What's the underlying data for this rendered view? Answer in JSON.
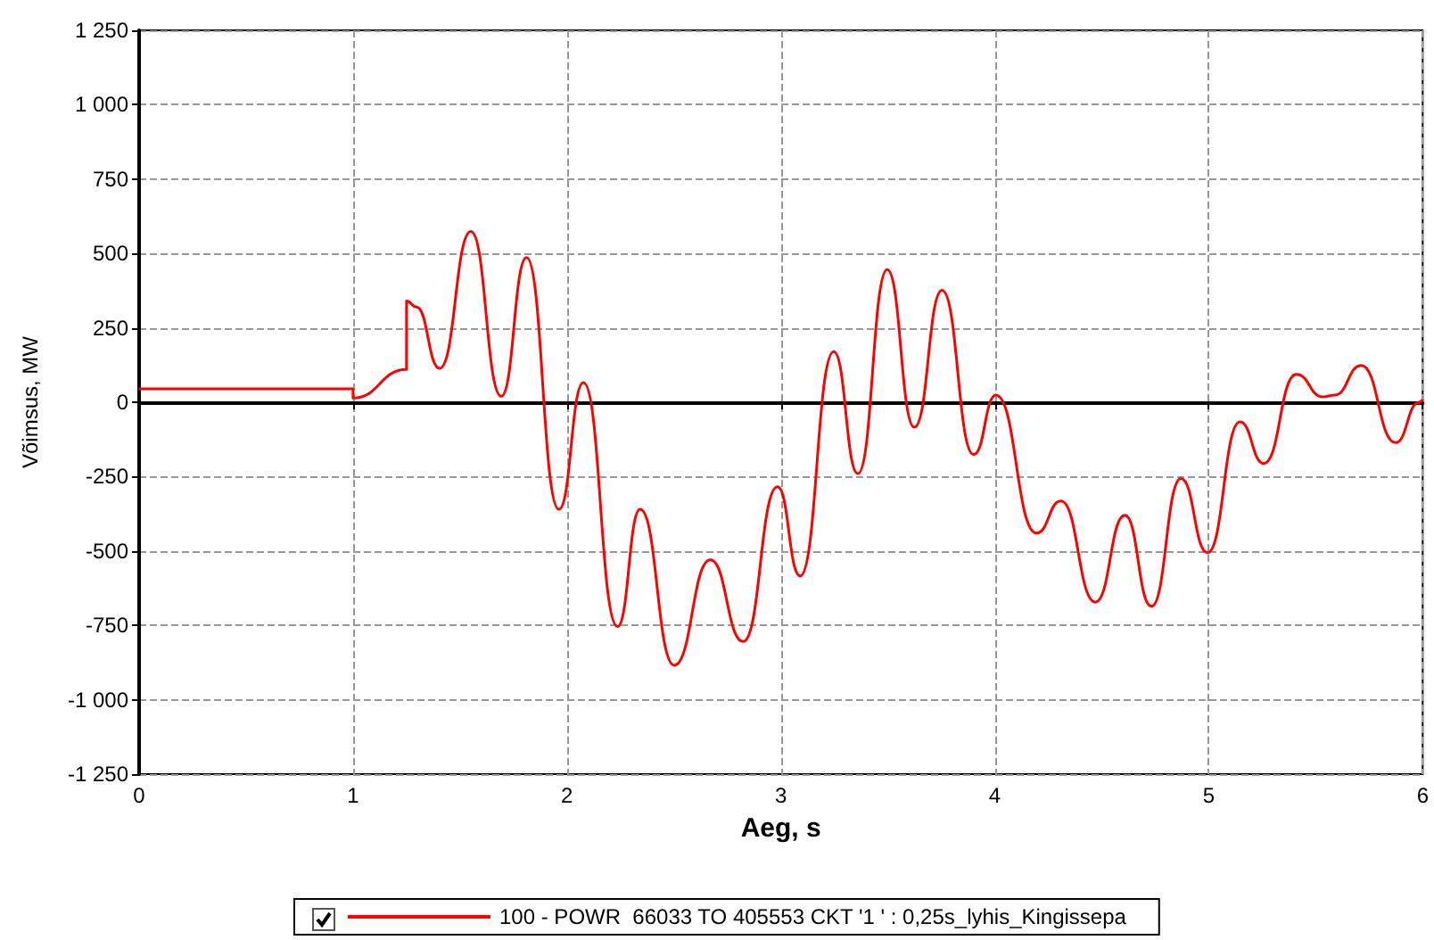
{
  "chart_data": {
    "type": "line",
    "xlabel": "Aeg, s",
    "ylabel": "Võimsus, MW",
    "xlim": [
      0,
      6
    ],
    "xticks": [
      0,
      1,
      2,
      3,
      4,
      5,
      6
    ],
    "ylim": [
      -1250,
      1250
    ],
    "yticks": [
      {
        "value": -1250,
        "label": "-1 250"
      },
      {
        "value": -1000,
        "label": "-1 000"
      },
      -750,
      -500,
      -250,
      0,
      250,
      500,
      750,
      {
        "value": 1000,
        "label": "1 000"
      },
      {
        "value": 1250,
        "label": "1 250"
      }
    ],
    "grid": true,
    "legend": "bottom",
    "marker": "none",
    "line_style": "solid",
    "series": [
      {
        "name": "100 - POWR  66033 TO 405553 CKT '1 ' : 0,25s_lyhis_Kingissepa",
        "color": "#ff0000",
        "x": [
          0,
          1,
          1,
          1.25,
          1.25,
          1.296,
          1.405,
          1.551,
          1.693,
          1.811,
          1.962,
          2.077,
          2.236,
          2.342,
          2.501,
          2.67,
          2.824,
          2.984,
          3.09,
          3.247,
          3.36,
          3.497,
          3.624,
          3.753,
          3.901,
          4.005,
          4.195,
          4.309,
          4.47,
          4.608,
          4.732,
          4.87,
          4.994,
          5.146,
          5.257,
          5.409,
          5.533,
          5.588,
          5.713,
          5.873,
          5.983,
          6
        ],
        "values": [
          45,
          45,
          14,
          110,
          340,
          320,
          114,
          574,
          20,
          486,
          -360,
          66,
          -754,
          -360,
          -884,
          -530,
          -804,
          -284,
          -584,
          170,
          -240,
          446,
          -84,
          376,
          -176,
          24,
          -440,
          -332,
          -672,
          -380,
          -686,
          -256,
          -506,
          -66,
          -206,
          94,
          18,
          24,
          124,
          -136,
          0,
          10
        ]
      }
    ]
  }
}
